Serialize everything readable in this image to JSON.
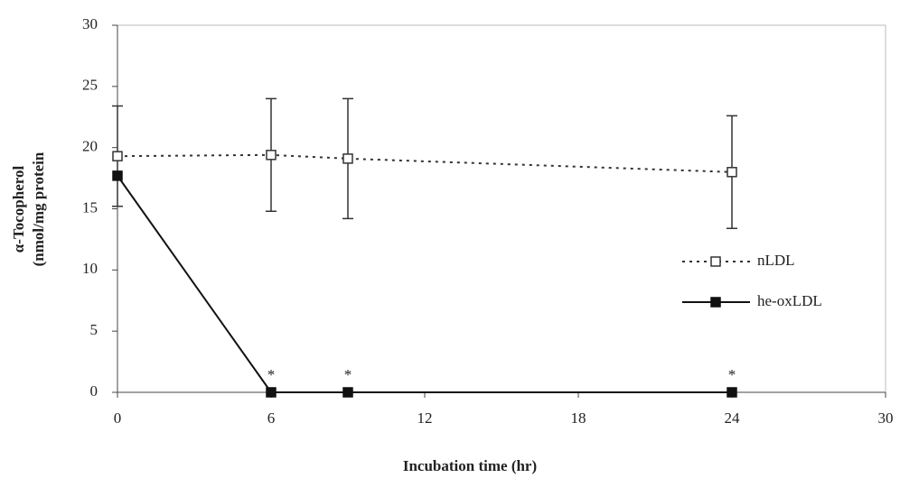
{
  "chart_data": {
    "type": "line",
    "x_label": "Incubation time (hr)",
    "y_label": [
      "α-Tocopherol",
      "(nmol/mg protein"
    ],
    "xlim": [
      0,
      30
    ],
    "xticks": [
      0,
      6,
      12,
      18,
      24,
      30
    ],
    "ylim": [
      0,
      30
    ],
    "yticks": [
      0,
      5,
      10,
      15,
      20,
      25,
      30
    ],
    "grid": false,
    "legend": "right",
    "series": [
      {
        "name": "nLDL",
        "color": "#333333",
        "dash": "dotted",
        "marker": "open-square",
        "x": [
          0,
          6,
          9,
          24
        ],
        "values": [
          19.3,
          19.4,
          19.1,
          18.0
        ],
        "errors": [
          4.1,
          4.6,
          4.9,
          4.6
        ]
      },
      {
        "name": "he-oxLDL",
        "color": "#111111",
        "dash": "solid",
        "marker": "filled-square",
        "x": [
          0,
          6,
          9,
          24
        ],
        "values": [
          17.7,
          0,
          0,
          0
        ]
      }
    ],
    "annotations": [
      {
        "text": "*",
        "x": 6
      },
      {
        "text": "*",
        "x": 9
      },
      {
        "text": "*",
        "x": 24
      }
    ]
  }
}
